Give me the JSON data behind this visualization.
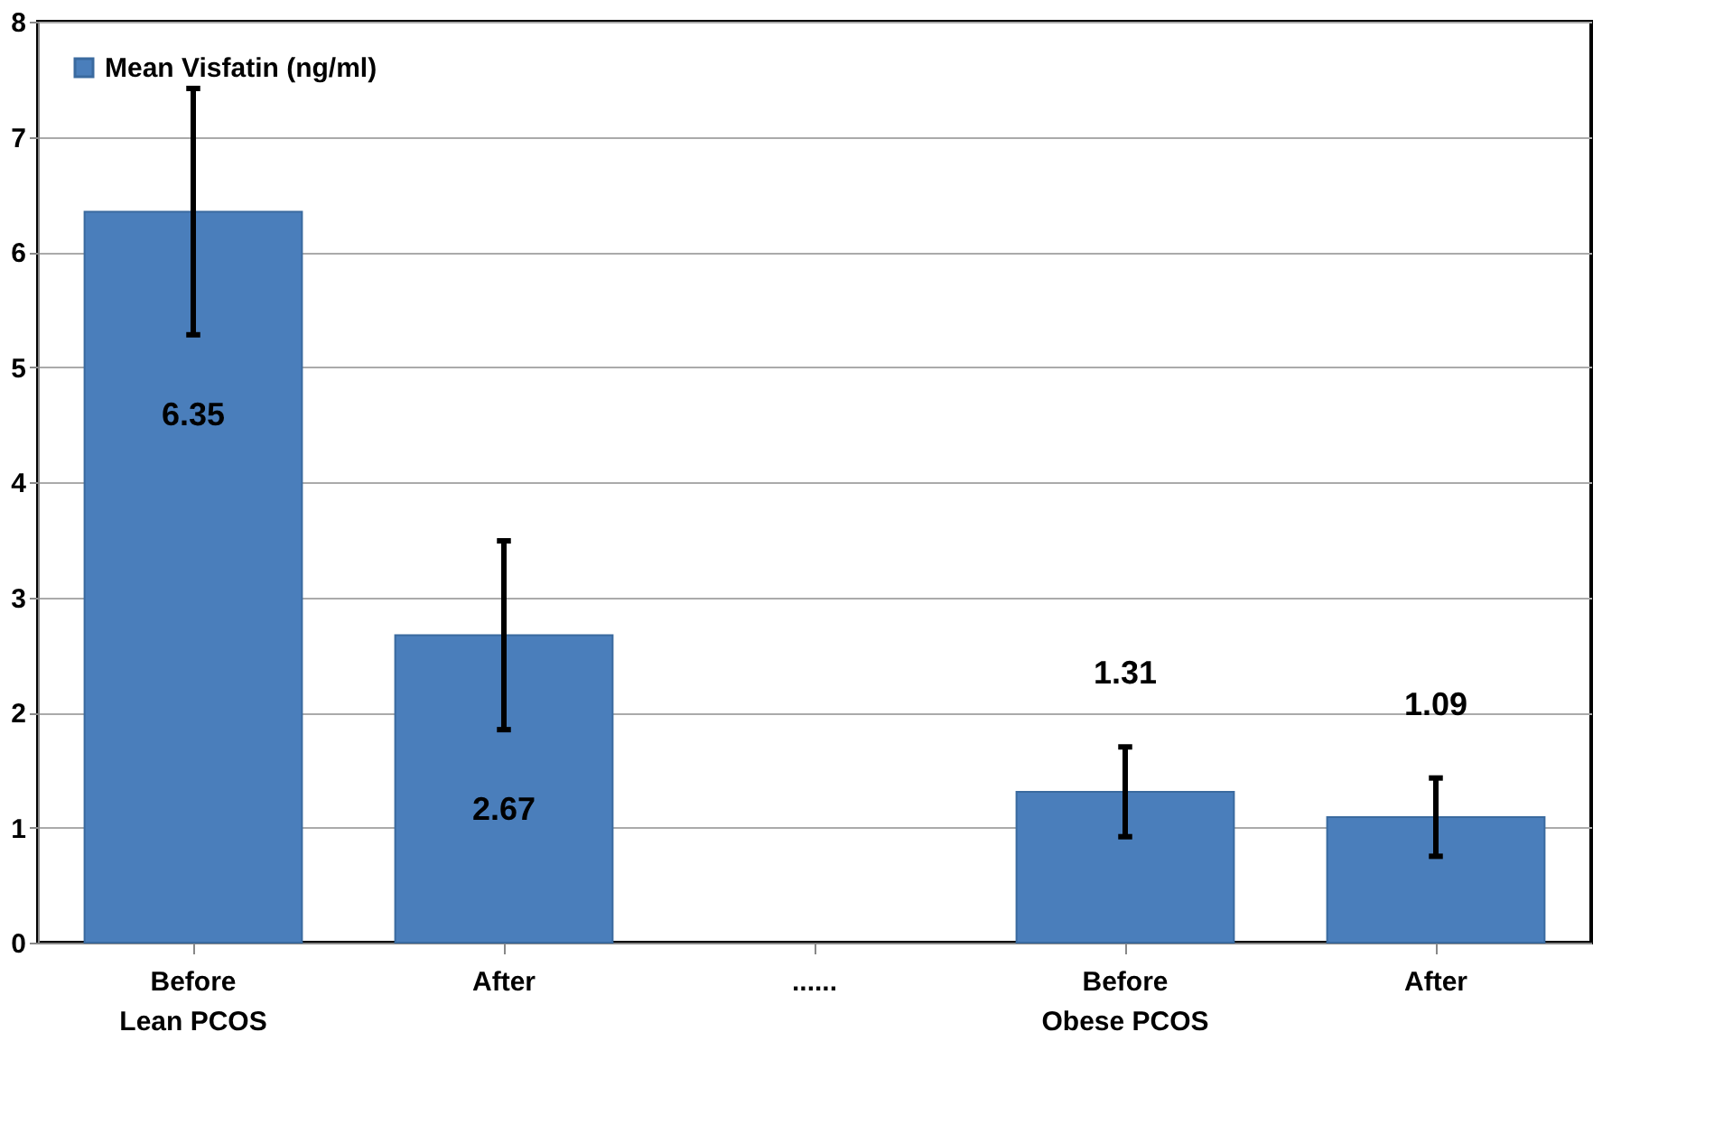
{
  "chart_data": {
    "type": "bar",
    "categories": [
      "Before\nLean PCOS",
      "After",
      "......",
      "Before\nObese PCOS",
      "After"
    ],
    "series": [
      {
        "name": "Mean Visfatin (ng/ml)",
        "color": "#4a7ebb",
        "values": [
          6.35,
          2.67,
          null,
          1.31,
          1.09
        ],
        "errors": [
          1.07,
          0.82,
          null,
          0.39,
          0.34
        ]
      }
    ],
    "ylim": [
      0,
      8
    ],
    "yticks": [
      0,
      1,
      2,
      3,
      4,
      5,
      6,
      7,
      8
    ],
    "grid": "y",
    "legend": "top left",
    "data_labels": true
  }
}
